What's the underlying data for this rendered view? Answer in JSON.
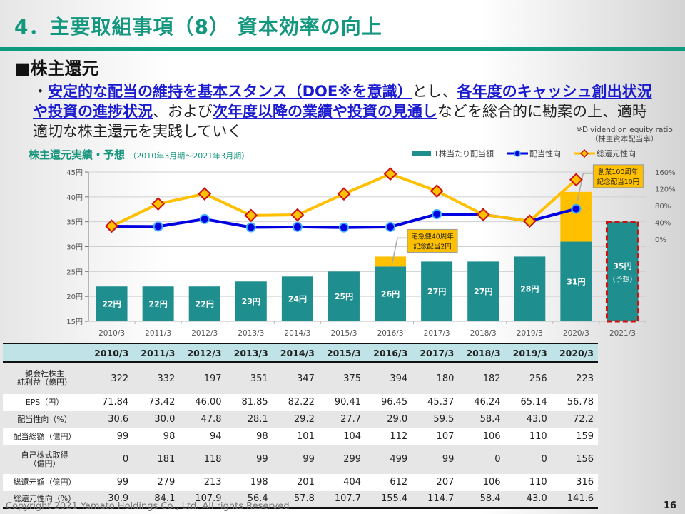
{
  "header": {
    "title": "4．主要取組事項（8） 資本効率の向上",
    "section": "■株主還元"
  },
  "bullet": {
    "prefix": "・",
    "parts": [
      {
        "text": "安定的な配当の維持を基本スタンス（DOE※を意識）",
        "highlight": true
      },
      {
        "text": "とし、",
        "highlight": false
      },
      {
        "text": "各年度のキャッシュ創出状況や投資の進捗状況",
        "highlight": true
      },
      {
        "text": "、および",
        "highlight": false
      },
      {
        "text": "次年度以降の業績や投資の見通し",
        "highlight": true
      },
      {
        "text": "などを総合的に勘案の上、適時適切な株主還元を実践していく",
        "highlight": false
      }
    ]
  },
  "note": {
    "line1": "※Dividend on equity ratio",
    "line2": "（株主資本配当率）"
  },
  "chart_title": {
    "main": "株主還元実績・予想",
    "sub": "（2010年3月期～2021年3月期）"
  },
  "legend": {
    "dps": "1株当たり配当額",
    "payout": "配当性向",
    "total_return": "総還元性向"
  },
  "colors": {
    "title": "#13977f",
    "bar": "#1e8e8e",
    "commemorative": "#ffc000",
    "payout_line": "#0000e0",
    "total_line": "#ffc000",
    "total_marker_border": "#d01010",
    "forecast_border": "#d01010",
    "highlight_text": "#1a1ad0"
  },
  "chart_data": {
    "type": "bar",
    "title": "株主還元実績・予想",
    "categories": [
      "2010/3",
      "2011/3",
      "2012/3",
      "2013/3",
      "2014/3",
      "2015/3",
      "2016/3",
      "2017/3",
      "2018/3",
      "2019/3",
      "2020/3",
      "2021/3"
    ],
    "y_left": {
      "ylim": [
        15,
        45
      ],
      "ticks": [
        15,
        20,
        25,
        30,
        35,
        40,
        45
      ],
      "tick_labels": [
        "15円",
        "20円",
        "25円",
        "30円",
        "35円",
        "40円",
        "45円"
      ]
    },
    "y_right": {
      "ylim": [
        0,
        160
      ],
      "ticks": [
        0,
        40,
        80,
        120,
        160
      ],
      "tick_labels": [
        "0%",
        "40%",
        "80%",
        "120%",
        "160%"
      ]
    },
    "series": [
      {
        "name": "1株当たり配当額",
        "kind": "bar",
        "axis": "left",
        "values": [
          22,
          22,
          22,
          23,
          24,
          25,
          26,
          27,
          27,
          28,
          31,
          35
        ],
        "labels": [
          "22円",
          "22円",
          "22円",
          "23円",
          "24円",
          "25円",
          "26円",
          "27円",
          "27円",
          "28円",
          "31円",
          "35円"
        ]
      },
      {
        "name": "記念配当",
        "kind": "bar-stack",
        "axis": "left",
        "values": [
          0,
          0,
          0,
          0,
          0,
          0,
          2,
          0,
          0,
          0,
          10,
          0
        ]
      },
      {
        "name": "配当性向",
        "kind": "line",
        "axis": "right",
        "values": [
          30.6,
          30.0,
          47.8,
          28.1,
          29.2,
          27.7,
          29.0,
          59.5,
          58.4,
          43.0,
          72.2,
          null
        ]
      },
      {
        "name": "総還元性向",
        "kind": "line",
        "axis": "right",
        "values": [
          30.9,
          84.1,
          107.9,
          56.4,
          57.8,
          107.7,
          155.4,
          114.7,
          58.4,
          43.0,
          141.6,
          null
        ]
      }
    ],
    "forecast": {
      "category": "2021/3",
      "label": "35円",
      "note": "（予想）"
    },
    "annotations": [
      {
        "category": "2016/3",
        "line1": "宅急便40周年",
        "line2": "記念配当2円"
      },
      {
        "category": "2020/3",
        "line1": "創業100周年",
        "line2": "記念配当10円"
      }
    ],
    "grid": true,
    "legend_position": "top-right"
  },
  "table": {
    "headers": [
      "",
      "2010/3",
      "2011/3",
      "2012/3",
      "2013/3",
      "2014/3",
      "2015/3",
      "2016/3",
      "2017/3",
      "2018/3",
      "2019/3",
      "2020/3"
    ],
    "rows": [
      {
        "label": "親会社株主\n純利益（億円）",
        "values": [
          "322",
          "332",
          "197",
          "351",
          "347",
          "375",
          "394",
          "180",
          "182",
          "256",
          "223"
        ]
      },
      {
        "label": "EPS（円）",
        "values": [
          "71.84",
          "73.42",
          "46.00",
          "81.85",
          "82.22",
          "90.41",
          "96.45",
          "45.37",
          "46.24",
          "65.14",
          "56.78"
        ]
      },
      {
        "label": "配当性向（%）",
        "values": [
          "30.6",
          "30.0",
          "47.8",
          "28.1",
          "29.2",
          "27.7",
          "29.0",
          "59.5",
          "58.4",
          "43.0",
          "72.2"
        ]
      },
      {
        "label": "配当総額（億円）",
        "values": [
          "99",
          "98",
          "94",
          "98",
          "101",
          "104",
          "112",
          "107",
          "106",
          "110",
          "159"
        ]
      },
      {
        "label": "自己株式取得\n（億円）",
        "values": [
          "0",
          "181",
          "118",
          "99",
          "99",
          "299",
          "499",
          "99",
          "0",
          "0",
          "156"
        ]
      },
      {
        "label": "総還元額（億円）",
        "values": [
          "99",
          "279",
          "213",
          "198",
          "201",
          "404",
          "612",
          "207",
          "106",
          "110",
          "316"
        ]
      },
      {
        "label": "総還元性向（%）",
        "values": [
          "30.9",
          "84.1",
          "107.9",
          "56.4",
          "57.8",
          "107.7",
          "155.4",
          "114.7",
          "58.4",
          "43.0",
          "141.6"
        ]
      }
    ]
  },
  "footer": {
    "copyright": "Copyright 2021 Yamato Holdings Co., Ltd. All rights Reserved",
    "page": "16"
  }
}
